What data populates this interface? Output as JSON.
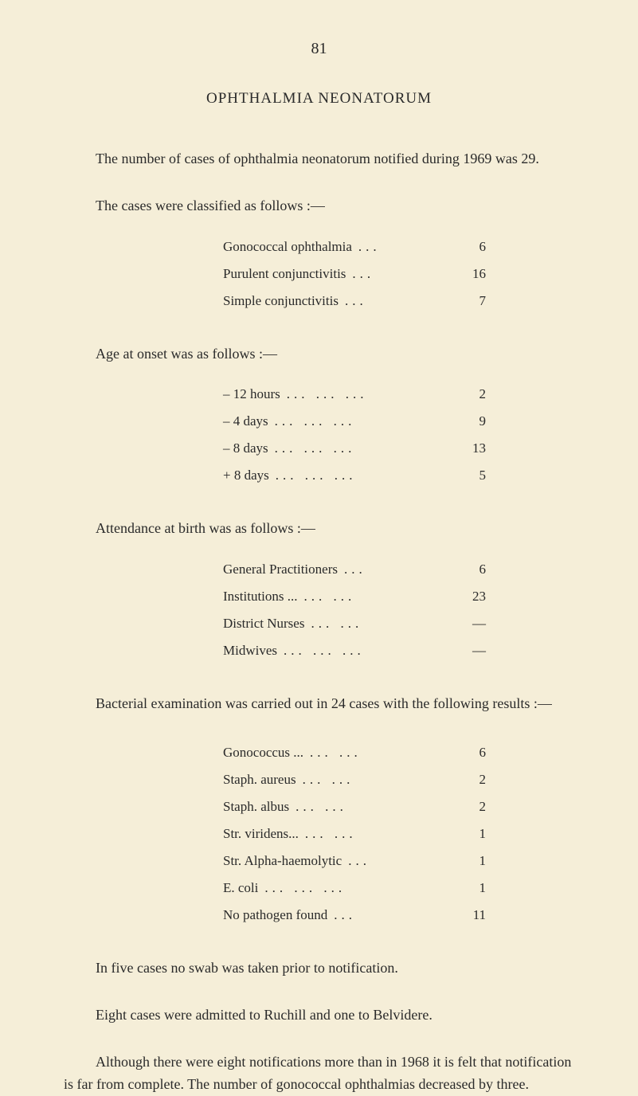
{
  "page_number": "81",
  "title": "OPHTHALMIA NEONATORUM",
  "intro_paragraph": "The number of cases of ophthalmia neonatorum notified during 1969 was 29.",
  "classification": {
    "intro": "The cases were classified as follows :—",
    "rows": [
      {
        "label": "Gonococcal ophthalmia",
        "dots": "...",
        "value": "6"
      },
      {
        "label": "Purulent conjunctivitis",
        "dots": "...",
        "value": "16"
      },
      {
        "label": "Simple conjunctivitis",
        "dots": "...",
        "value": "7"
      }
    ]
  },
  "age_onset": {
    "intro": "Age at onset was as follows :—",
    "rows": [
      {
        "label": "– 12 hours",
        "dots": "...   ...   ...",
        "value": "2"
      },
      {
        "label": "– 4 days",
        "dots": "...   ...   ...",
        "value": "9"
      },
      {
        "label": "– 8 days",
        "dots": "...   ...   ...",
        "value": "13"
      },
      {
        "label": "+ 8 days",
        "dots": "...   ...   ...",
        "value": "5"
      }
    ]
  },
  "attendance": {
    "intro": "Attendance at birth was as follows :—",
    "rows": [
      {
        "label": "General Practitioners",
        "dots": "...",
        "value": "6"
      },
      {
        "label": "Institutions ...",
        "dots": "...   ...",
        "value": "23"
      },
      {
        "label": "District Nurses",
        "dots": "...   ...",
        "value": "—"
      },
      {
        "label": "Midwives",
        "dots": "...   ...   ...",
        "value": "—"
      }
    ]
  },
  "bacterial": {
    "intro": "Bacterial examination was carried out in 24 cases with the following results :—",
    "rows": [
      {
        "label": "Gonococcus ...",
        "dots": "...   ...",
        "value": "6"
      },
      {
        "label": "Staph. aureus",
        "dots": "...   ...",
        "value": "2"
      },
      {
        "label": "Staph. albus",
        "dots": "...   ...",
        "value": "2"
      },
      {
        "label": "Str. viridens...",
        "dots": "...   ...",
        "value": "1"
      },
      {
        "label": "Str. Alpha-haemolytic",
        "dots": "...",
        "value": "1"
      },
      {
        "label": "E. coli",
        "dots": "...   ...   ...",
        "value": "1"
      },
      {
        "label": "No pathogen found",
        "dots": "...",
        "value": "11"
      }
    ]
  },
  "swab_paragraph": "In five cases no swab was taken prior to notification.",
  "admitted_paragraph": "Eight cases were admitted to Ruchill and one to Belvidere.",
  "final_paragraph": "Although there were eight notifications more than in 1968 it is felt that notification is far from complete. The number of gonococcal ophthalmias decreased by three."
}
